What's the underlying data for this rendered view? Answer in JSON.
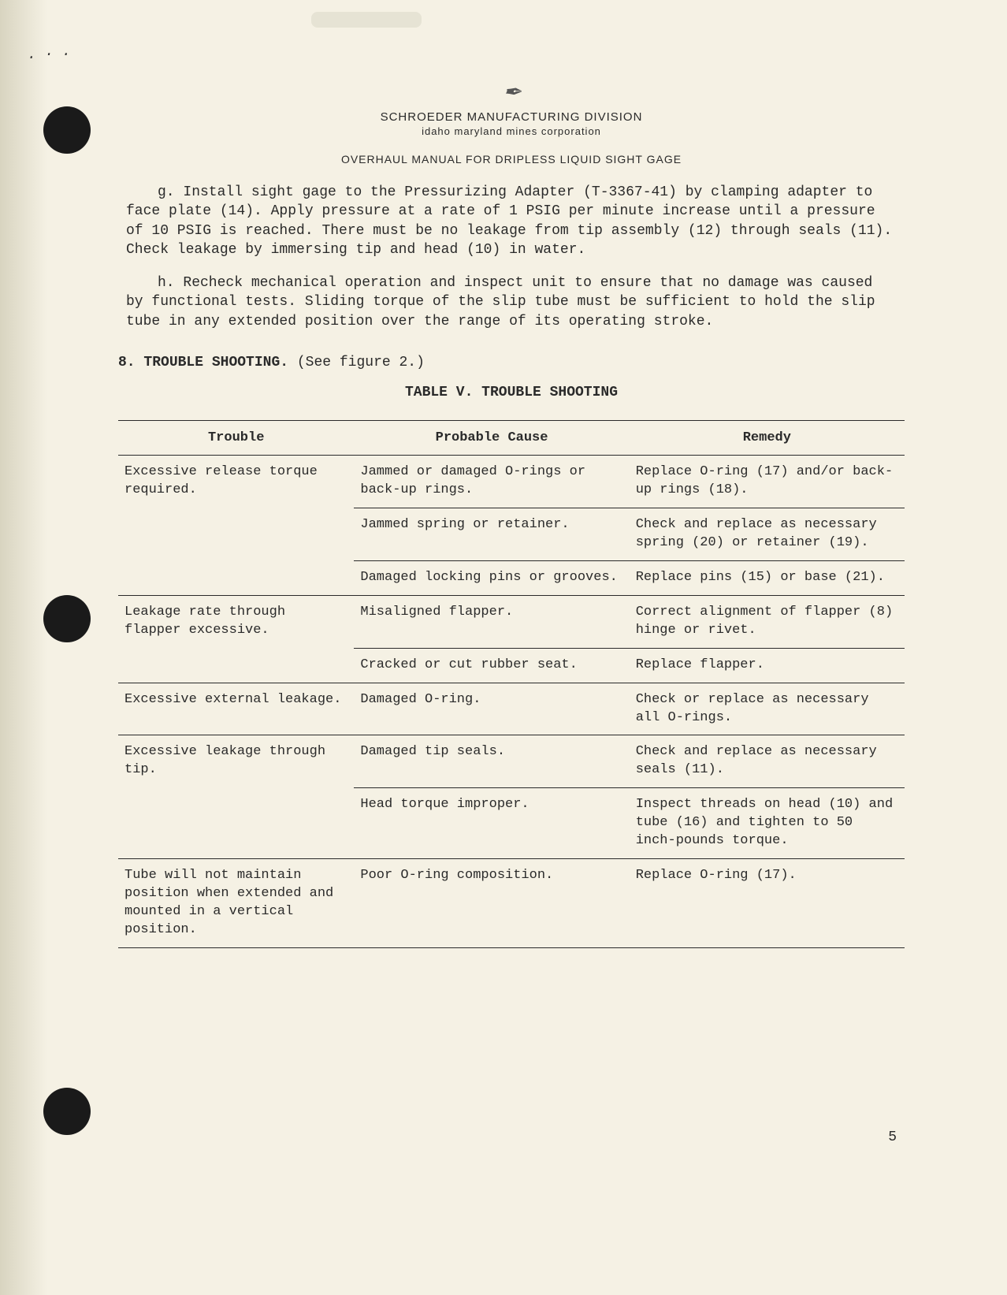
{
  "header": {
    "company_line1": "SCHROEDER MANUFACTURING DIVISION",
    "company_line2": "idaho maryland mines corporation",
    "doc_title": "OVERHAUL MANUAL FOR DRIPLESS LIQUID SIGHT GAGE"
  },
  "paragraphs": {
    "g": "g.   Install sight gage to the Pressurizing Adapter (T-3367-41) by clamping adapter to face plate (14). Apply pressure at a rate of 1 PSIG per minute increase until a pressure of 10 PSIG is reached. There must be no leakage from tip assembly (12) through seals (11). Check leakage by immersing tip and head (10) in water.",
    "h": "h.   Recheck mechanical operation and inspect unit to ensure that no damage was caused by functional tests. Sliding torque of the slip tube must be sufficient to hold the slip tube in any extended position over the range of its operating stroke."
  },
  "section": {
    "num": "8.",
    "title": "TROUBLE SHOOTING.",
    "note": "(See figure 2.)"
  },
  "table": {
    "title": "TABLE V.  TROUBLE SHOOTING",
    "headers": {
      "trouble": "Trouble",
      "cause": "Probable Cause",
      "remedy": "Remedy"
    },
    "rows": [
      {
        "trouble": "Excessive release torque required.",
        "cause": "Jammed or damaged O-rings or back-up rings.",
        "remedy": "Replace O-ring (17) and/or back-up rings (18)."
      },
      {
        "trouble": "",
        "cause": "Jammed spring or retainer.",
        "remedy": "Check and replace as necessary spring (20) or retainer (19)."
      },
      {
        "trouble": "",
        "cause": "Damaged locking pins or grooves.",
        "remedy": "Replace pins (15) or base (21)."
      },
      {
        "trouble": "Leakage rate through flapper excessive.",
        "cause": "Misaligned flapper.",
        "remedy": "Correct alignment of flapper (8) hinge or rivet."
      },
      {
        "trouble": "",
        "cause": "Cracked or cut rubber seat.",
        "remedy": "Replace flapper."
      },
      {
        "trouble": "Excessive external leakage.",
        "cause": "Damaged O-ring.",
        "remedy": "Check or replace as necessary all O-rings."
      },
      {
        "trouble": "Excessive leakage through tip.",
        "cause": "Damaged tip seals.",
        "remedy": "Check and replace as necessary seals (11)."
      },
      {
        "trouble": "",
        "cause": "Head torque improper.",
        "remedy": "Inspect threads on head (10) and tube (16) and tighten to 50 inch-pounds torque."
      },
      {
        "trouble": "Tube will not maintain position when extended and mounted in a vertical position.",
        "cause": "Poor O-ring composition.",
        "remedy": "Replace O-ring (17)."
      }
    ]
  },
  "page_number": "5",
  "colors": {
    "page_bg": "#f5f1e4",
    "text": "#2a2a2a",
    "hole": "#1a1a1a"
  }
}
